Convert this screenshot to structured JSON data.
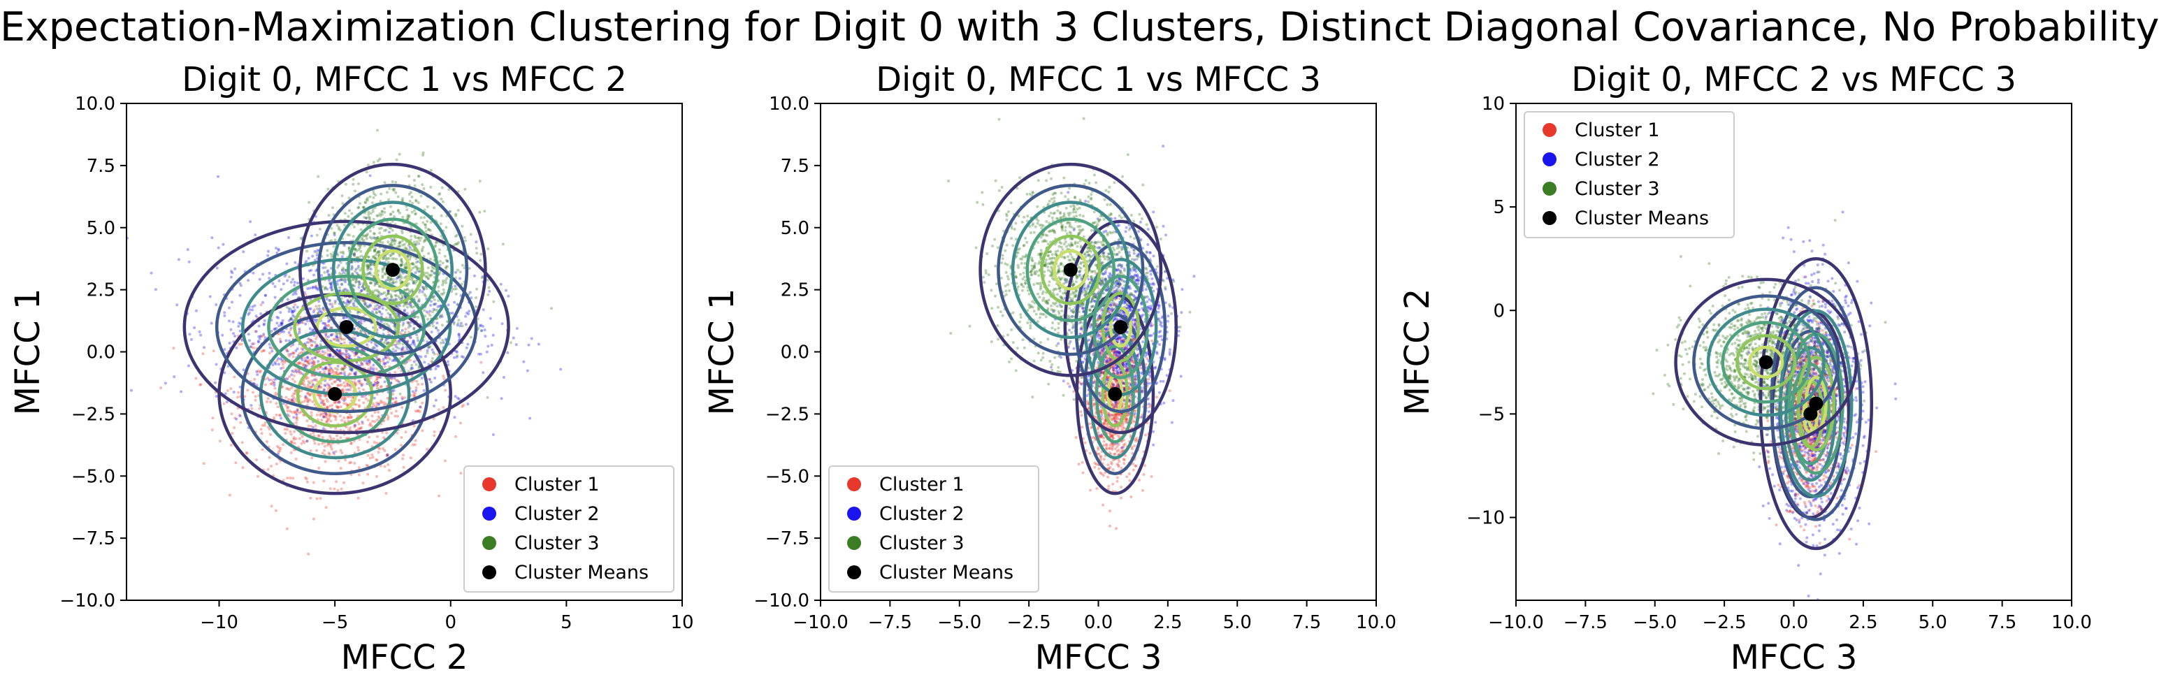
{
  "suptitle": "Expectation-Maximization Clustering for Digit 0 with 3 Clusters, Distinct Diagonal Covariance, No Probability",
  "colors": {
    "cluster1": "#e8382c",
    "cluster2": "#1a14ee",
    "cluster3": "#3a7d22",
    "means": "#000000",
    "contour_levels": [
      "#3b3470",
      "#3f5a8a",
      "#3f8a8c",
      "#4fa27f",
      "#8fc65c",
      "#c8e06a"
    ]
  },
  "chart_data": [
    {
      "type": "scatter",
      "title": "Digit 0, MFCC 1 vs MFCC 2",
      "xlabel": "MFCC 2",
      "ylabel": "MFCC 1",
      "xlim": [
        -14,
        10
      ],
      "ylim": [
        -10,
        10
      ],
      "xticks": [
        -10,
        -5,
        0,
        5,
        10
      ],
      "yticks": [
        -10.0,
        -7.5,
        -5.0,
        -2.5,
        0.0,
        2.5,
        5.0,
        7.5,
        10.0
      ],
      "legend": {
        "placement": "lower-right",
        "entries": [
          "Cluster 1",
          "Cluster 2",
          "Cluster 3",
          "Cluster Means"
        ]
      },
      "series": [
        {
          "name": "Cluster 1",
          "mean": [
            -5.0,
            -1.7
          ],
          "std": [
            2.0,
            1.6
          ]
        },
        {
          "name": "Cluster 2",
          "mean": [
            -4.5,
            1.0
          ],
          "std": [
            2.8,
            1.7
          ]
        },
        {
          "name": "Cluster 3",
          "mean": [
            -2.5,
            3.3
          ],
          "std": [
            1.6,
            1.7
          ]
        }
      ],
      "means": [
        [
          -5.0,
          -1.7
        ],
        [
          -4.5,
          1.0
        ],
        [
          -2.5,
          3.3
        ]
      ]
    },
    {
      "type": "scatter",
      "title": "Digit 0, MFCC 1 vs MFCC 3",
      "xlabel": "MFCC 3",
      "ylabel": "MFCC 1",
      "xlim": [
        -10,
        10
      ],
      "ylim": [
        -10,
        10
      ],
      "xticks": [
        -10.0,
        -7.5,
        -5.0,
        -2.5,
        0.0,
        2.5,
        5.0,
        7.5,
        10.0
      ],
      "yticks": [
        -10.0,
        -7.5,
        -5.0,
        -2.5,
        0.0,
        2.5,
        5.0,
        7.5,
        10.0
      ],
      "legend": {
        "placement": "lower-left",
        "entries": [
          "Cluster 1",
          "Cluster 2",
          "Cluster 3",
          "Cluster Means"
        ]
      },
      "series": [
        {
          "name": "Cluster 1",
          "mean": [
            0.6,
            -1.7
          ],
          "std": [
            0.55,
            1.6
          ]
        },
        {
          "name": "Cluster 2",
          "mean": [
            0.8,
            1.0
          ],
          "std": [
            0.8,
            1.7
          ]
        },
        {
          "name": "Cluster 3",
          "mean": [
            -1.0,
            3.3
          ],
          "std": [
            1.3,
            1.7
          ]
        }
      ],
      "means": [
        [
          0.6,
          -1.7
        ],
        [
          0.8,
          1.0
        ],
        [
          -1.0,
          3.3
        ]
      ]
    },
    {
      "type": "scatter",
      "title": "Digit 0, MFCC 2 vs MFCC 3",
      "xlabel": "MFCC 3",
      "ylabel": "MFCC 2",
      "xlim": [
        -10,
        10
      ],
      "ylim": [
        -14,
        10
      ],
      "xticks": [
        -10.0,
        -7.5,
        -5.0,
        -2.5,
        0.0,
        2.5,
        5.0,
        7.5,
        10.0
      ],
      "yticks": [
        -10,
        -5,
        0,
        5,
        10
      ],
      "legend": {
        "placement": "upper-left",
        "entries": [
          "Cluster 1",
          "Cluster 2",
          "Cluster 3",
          "Cluster Means"
        ]
      },
      "series": [
        {
          "name": "Cluster 1",
          "mean": [
            0.6,
            -5.0
          ],
          "std": [
            0.55,
            2.0
          ]
        },
        {
          "name": "Cluster 2",
          "mean": [
            0.8,
            -4.5
          ],
          "std": [
            0.8,
            2.8
          ]
        },
        {
          "name": "Cluster 3",
          "mean": [
            -1.0,
            -2.5
          ],
          "std": [
            1.3,
            1.6
          ]
        }
      ],
      "means": [
        [
          0.6,
          -5.0
        ],
        [
          0.8,
          -4.5
        ],
        [
          -1.0,
          -2.5
        ]
      ]
    }
  ]
}
